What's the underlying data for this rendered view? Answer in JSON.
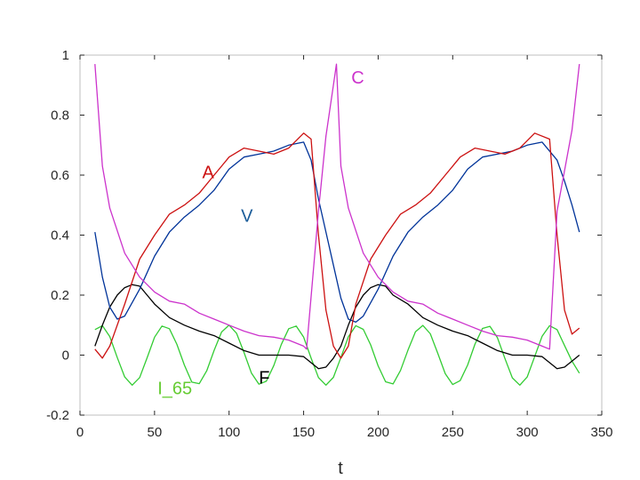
{
  "chart_data": {
    "type": "line",
    "title": "",
    "xlabel": "t",
    "ylabel": "",
    "xlim": [
      0,
      350
    ],
    "ylim": [
      -0.2,
      1
    ],
    "grid": false,
    "x_ticks": [
      "0",
      "50",
      "100",
      "150",
      "200",
      "250",
      "300",
      "350"
    ],
    "y_ticks": [
      "-0.2",
      "0",
      "0.2",
      "0.4",
      "0.6",
      "0.8",
      "1"
    ],
    "series": [
      {
        "name": "C",
        "color": "#cc33cc",
        "x": [
          10,
          15,
          20,
          30,
          40,
          50,
          60,
          70,
          80,
          90,
          100,
          110,
          120,
          130,
          140,
          150,
          152,
          160,
          165,
          170,
          172,
          175,
          180,
          190,
          200,
          210,
          220,
          230,
          240,
          250,
          260,
          270,
          280,
          290,
          300,
          310,
          315,
          320,
          330,
          335
        ],
        "values": [
          0.97,
          0.63,
          0.49,
          0.34,
          0.26,
          0.21,
          0.18,
          0.17,
          0.14,
          0.12,
          0.1,
          0.08,
          0.065,
          0.06,
          0.05,
          0.03,
          0.02,
          0.48,
          0.73,
          0.9,
          0.97,
          0.63,
          0.49,
          0.34,
          0.26,
          0.21,
          0.18,
          0.17,
          0.14,
          0.12,
          0.1,
          0.08,
          0.065,
          0.06,
          0.05,
          0.03,
          0.02,
          0.48,
          0.75,
          0.97
        ]
      },
      {
        "name": "A",
        "color": "#cc1111",
        "x": [
          10,
          15,
          20,
          30,
          40,
          50,
          60,
          70,
          80,
          90,
          100,
          110,
          120,
          130,
          140,
          150,
          155,
          160,
          165,
          170,
          175,
          180,
          185,
          195,
          205,
          215,
          225,
          235,
          245,
          255,
          265,
          275,
          285,
          295,
          305,
          315,
          320,
          325,
          330,
          335
        ],
        "values": [
          0.02,
          -0.01,
          0.03,
          0.17,
          0.32,
          0.4,
          0.47,
          0.5,
          0.54,
          0.6,
          0.66,
          0.69,
          0.68,
          0.67,
          0.69,
          0.74,
          0.72,
          0.4,
          0.15,
          0.03,
          -0.01,
          0.03,
          0.17,
          0.32,
          0.4,
          0.47,
          0.5,
          0.54,
          0.6,
          0.66,
          0.69,
          0.68,
          0.67,
          0.69,
          0.74,
          0.72,
          0.4,
          0.15,
          0.07,
          0.09
        ]
      },
      {
        "name": "V",
        "color": "#003399",
        "x": [
          10,
          15,
          20,
          25,
          30,
          40,
          50,
          60,
          70,
          80,
          90,
          100,
          110,
          120,
          130,
          140,
          150,
          155,
          160,
          165,
          170,
          175,
          180,
          185,
          190,
          200,
          210,
          220,
          230,
          240,
          250,
          260,
          270,
          280,
          290,
          300,
          310,
          320,
          325,
          330,
          335
        ],
        "values": [
          0.41,
          0.26,
          0.16,
          0.12,
          0.13,
          0.22,
          0.33,
          0.41,
          0.46,
          0.5,
          0.55,
          0.62,
          0.66,
          0.67,
          0.68,
          0.7,
          0.71,
          0.65,
          0.52,
          0.41,
          0.3,
          0.19,
          0.12,
          0.11,
          0.13,
          0.22,
          0.33,
          0.41,
          0.46,
          0.5,
          0.55,
          0.62,
          0.66,
          0.67,
          0.68,
          0.7,
          0.71,
          0.65,
          0.58,
          0.5,
          0.41
        ]
      },
      {
        "name": "F",
        "color": "#000000",
        "x": [
          10,
          15,
          20,
          25,
          30,
          35,
          40,
          45,
          50,
          60,
          70,
          80,
          90,
          100,
          110,
          120,
          130,
          140,
          150,
          160,
          165,
          170,
          175,
          180,
          185,
          190,
          195,
          200,
          205,
          210,
          220,
          230,
          240,
          250,
          260,
          270,
          280,
          290,
          300,
          310,
          320,
          325,
          330,
          335
        ],
        "values": [
          0.03,
          0.1,
          0.16,
          0.2,
          0.225,
          0.235,
          0.23,
          0.2,
          0.17,
          0.125,
          0.1,
          0.08,
          0.065,
          0.04,
          0.015,
          0.0,
          0.0,
          0.0,
          -0.005,
          -0.045,
          -0.04,
          -0.01,
          0.03,
          0.1,
          0.16,
          0.2,
          0.225,
          0.235,
          0.23,
          0.2,
          0.17,
          0.125,
          0.1,
          0.08,
          0.065,
          0.04,
          0.015,
          0.0,
          0.0,
          -0.005,
          -0.045,
          -0.04,
          -0.02,
          0.0
        ]
      },
      {
        "name": "I_65",
        "color": "#33cc33",
        "x": [
          10,
          15,
          20,
          25,
          30,
          35,
          40,
          45,
          50,
          55,
          60,
          65,
          70,
          75,
          80,
          85,
          90,
          95,
          100,
          105,
          110,
          115,
          120,
          125,
          130,
          135,
          140,
          145,
          150,
          155,
          160,
          165,
          170,
          175,
          180,
          185,
          190,
          195,
          200,
          205,
          210,
          215,
          220,
          225,
          230,
          235,
          240,
          245,
          250,
          255,
          260,
          265,
          270,
          275,
          280,
          285,
          290,
          295,
          300,
          305,
          310,
          315,
          320,
          325,
          330,
          335
        ],
        "values": [
          0.085,
          0.098,
          0.062,
          -0.008,
          -0.073,
          -0.1,
          -0.075,
          -0.009,
          0.06,
          0.097,
          0.088,
          0.036,
          -0.033,
          -0.09,
          -0.095,
          -0.052,
          0.016,
          0.077,
          0.1,
          0.073,
          0.009,
          -0.06,
          -0.097,
          -0.087,
          -0.035,
          0.035,
          0.088,
          0.097,
          0.06,
          -0.01,
          -0.075,
          -0.1,
          -0.074,
          -0.008,
          0.061,
          0.098,
          0.086,
          0.034,
          -0.036,
          -0.089,
          -0.096,
          -0.051,
          0.017,
          0.078,
          0.099,
          0.071,
          0.006,
          -0.062,
          -0.098,
          -0.085,
          -0.033,
          0.037,
          0.089,
          0.096,
          0.058,
          -0.011,
          -0.076,
          -0.1,
          -0.073,
          -0.005,
          0.063,
          0.098,
          0.085,
          0.032,
          -0.02,
          -0.06
        ]
      }
    ],
    "annotations": [
      {
        "text": "C",
        "x": 182,
        "y": 0.905,
        "color": "#cc33cc"
      },
      {
        "text": "A",
        "x": 82,
        "y": 0.59,
        "color": "#cc1111"
      },
      {
        "text": "V",
        "x": 108,
        "y": 0.445,
        "color": "#1a5c99"
      },
      {
        "text": "F",
        "x": 120,
        "y": -0.095,
        "color": "#000000"
      },
      {
        "text": "I_65",
        "x": 52,
        "y": -0.13,
        "color": "#66cc33"
      }
    ]
  }
}
